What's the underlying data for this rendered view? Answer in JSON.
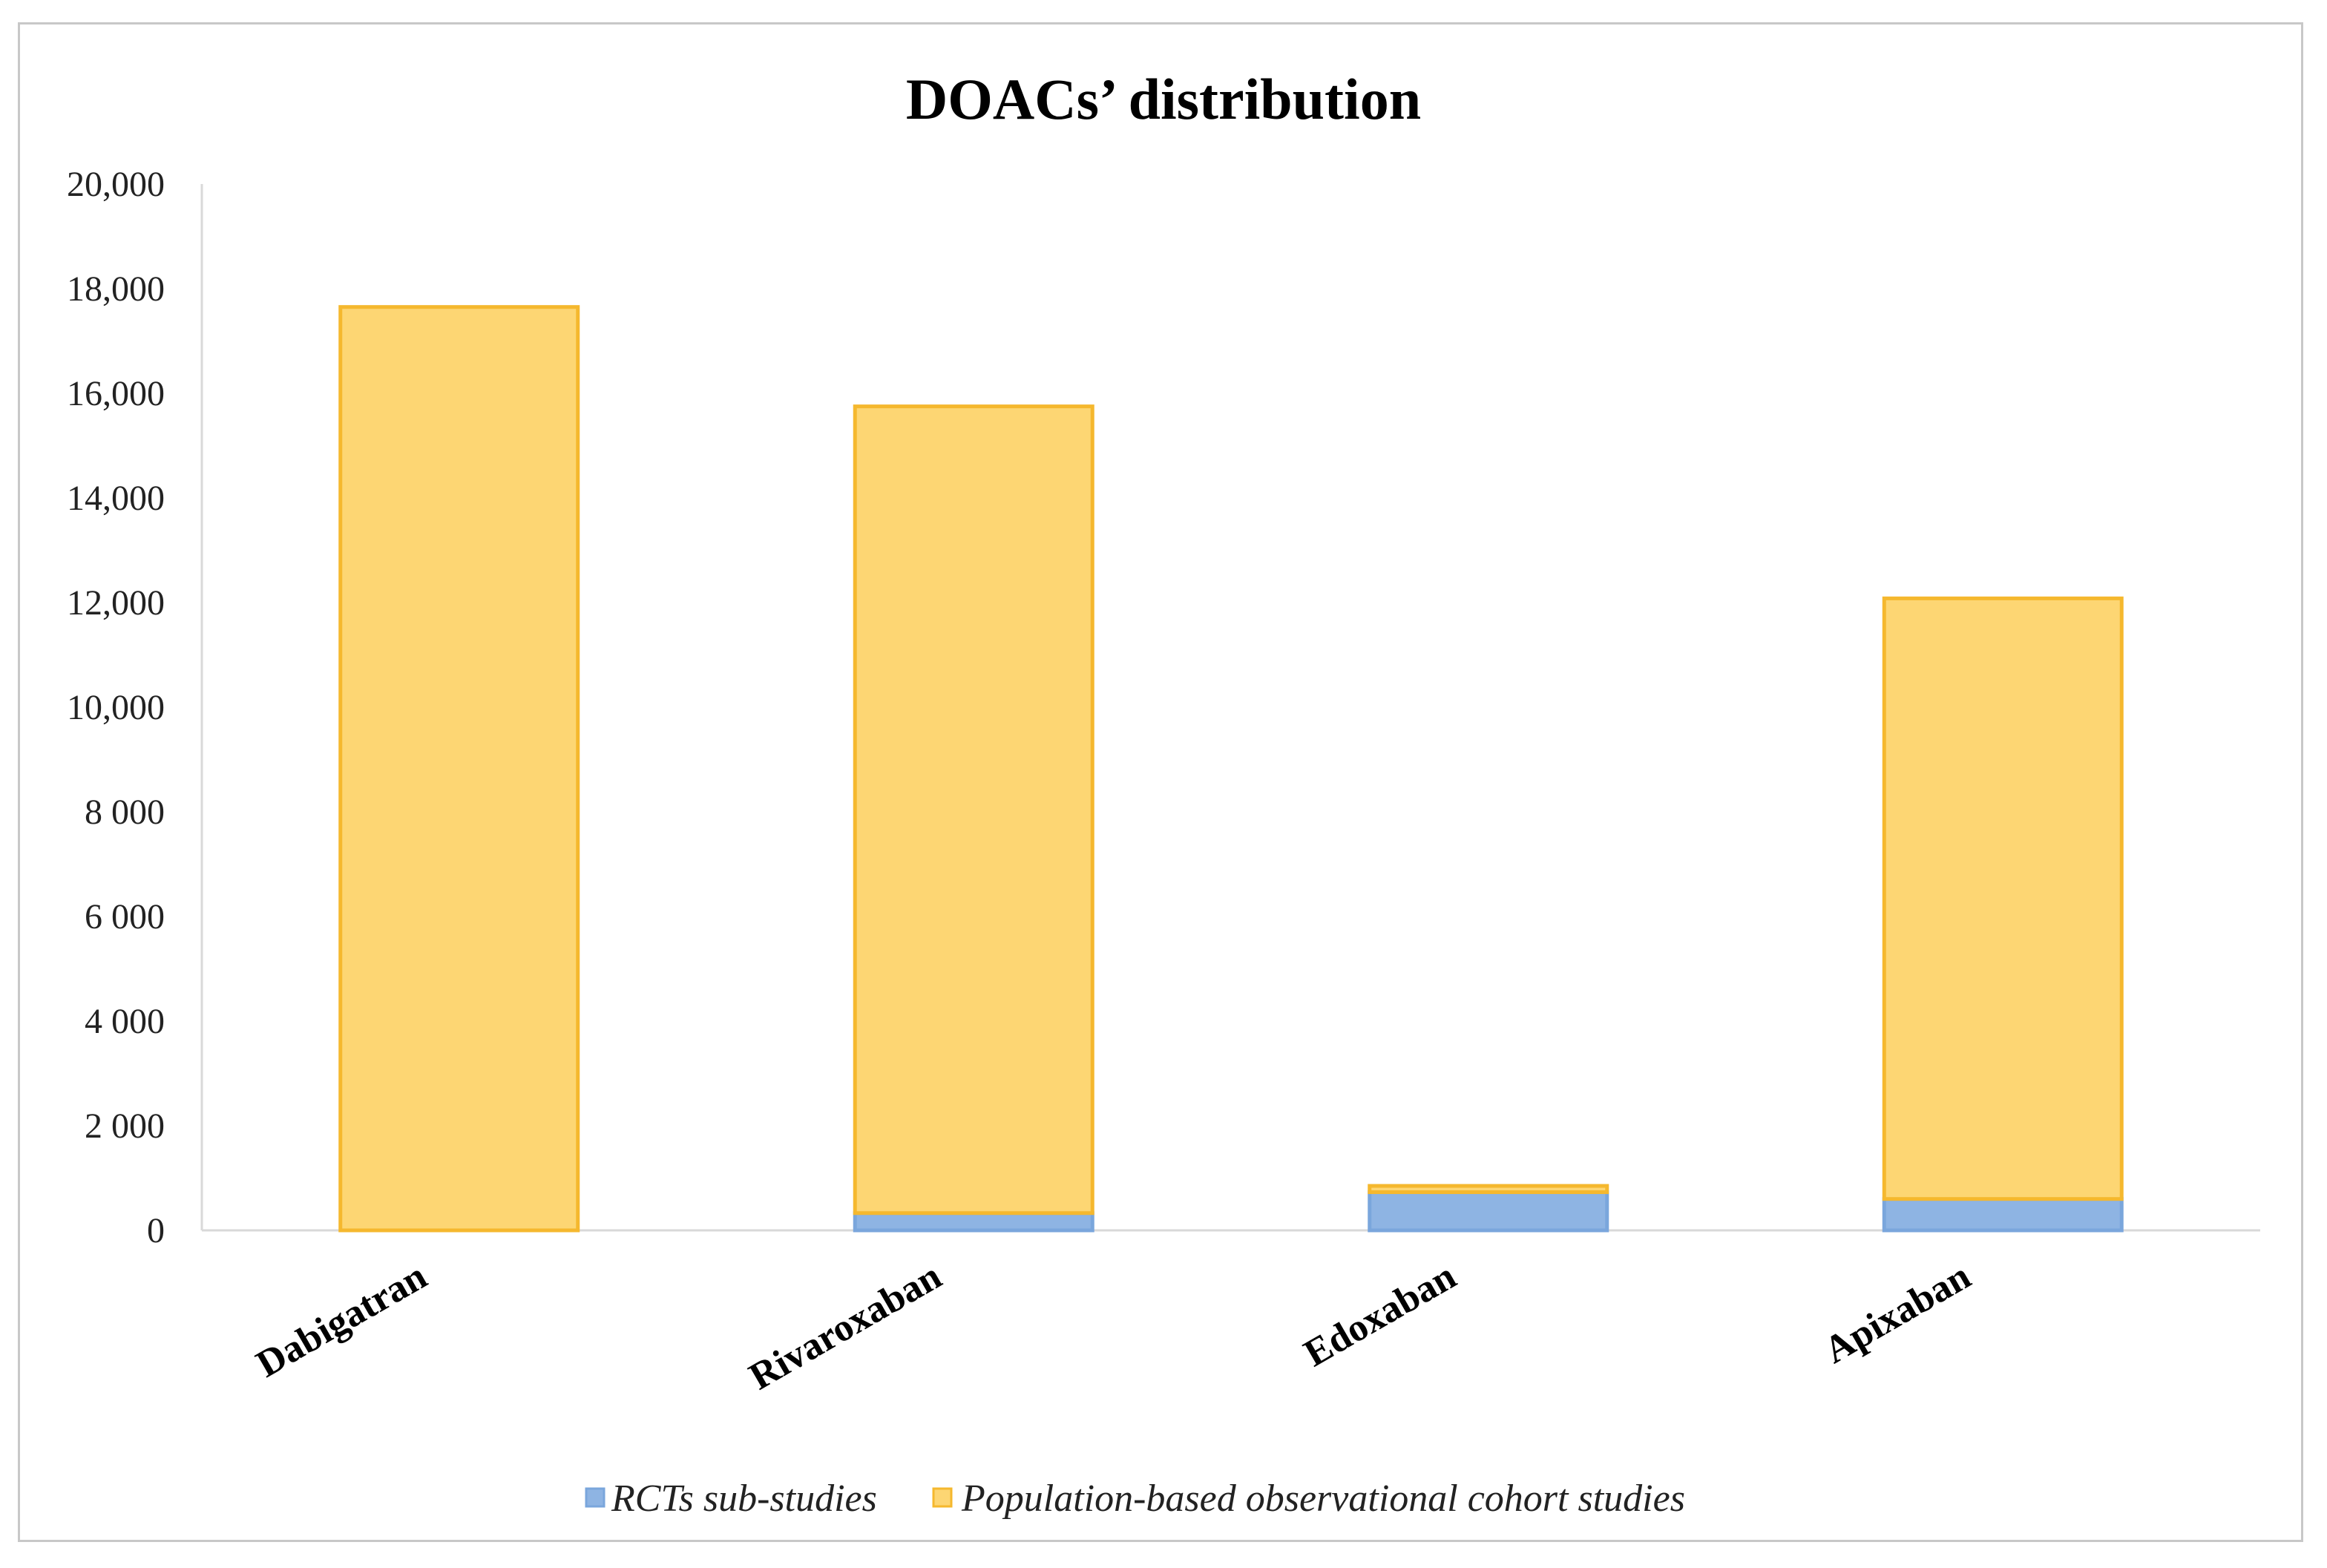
{
  "chart_data": {
    "type": "bar",
    "stacked": true,
    "title": "DOACs’ distribution",
    "xlabel": "",
    "ylabel": "",
    "categories": [
      "Dabigatran",
      "Rivaroxaban",
      "Edoxaban",
      "Apixaban"
    ],
    "series": [
      {
        "name": "RCTs sub-studies",
        "values": [
          0,
          330,
          730,
          600
        ],
        "color": "#8eb4e3",
        "stroke": "#7aa6dc"
      },
      {
        "name": "Population-based observational cohort studies",
        "values": [
          17650,
          15420,
          120,
          11480
        ],
        "color": "#fdd673",
        "stroke": "#f5b82e"
      }
    ],
    "ylim": [
      0,
      20000
    ],
    "yticks": [
      0,
      2000,
      4000,
      6000,
      8000,
      10000,
      12000,
      14000,
      16000,
      18000,
      20000
    ],
    "ytick_labels": [
      "0",
      "2 000",
      "4 000",
      "6 000",
      "8 000",
      "10,000",
      "12,000",
      "14,000",
      "16,000",
      "18,000",
      "20,000"
    ],
    "grid": false,
    "legend": "bottom"
  }
}
